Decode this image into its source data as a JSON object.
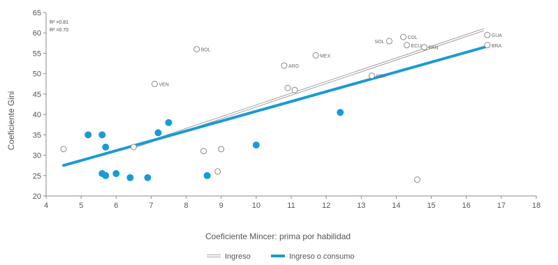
{
  "chart_data": {
    "type": "scatter",
    "xlabel": "Coeficiente Mincer: prima por habilidad",
    "ylabel": "Coeficiente Gini",
    "xlim": [
      4,
      18
    ],
    "ylim": [
      20,
      65
    ],
    "x_ticks": [
      "4",
      "5",
      "6",
      "7",
      "8",
      "9",
      "10",
      "11",
      "12",
      "13",
      "14",
      "15",
      "16",
      "17",
      "18"
    ],
    "y_ticks": [
      "20",
      "25",
      "30",
      "35",
      "40",
      "45",
      "50",
      "55",
      "60",
      "65"
    ],
    "grid": false,
    "legend_position": "bottom",
    "annotation_lines": [
      "R² =0.81",
      "R² =0.70"
    ],
    "series": [
      {
        "name": "Ingreso",
        "kind": "points",
        "marker": "open-circle",
        "color": "#888888",
        "points": [
          {
            "x": 4.5,
            "y": 31.5,
            "label": ""
          },
          {
            "x": 6.5,
            "y": 32.0,
            "label": ""
          },
          {
            "x": 7.1,
            "y": 47.5,
            "label": "VEN"
          },
          {
            "x": 8.3,
            "y": 56.0,
            "label": "BOL"
          },
          {
            "x": 8.5,
            "y": 31.0,
            "label": ""
          },
          {
            "x": 8.9,
            "y": 26.0,
            "label": ""
          },
          {
            "x": 9.0,
            "y": 31.5,
            "label": ""
          },
          {
            "x": 10.8,
            "y": 52.0,
            "label": "ARG"
          },
          {
            "x": 10.9,
            "y": 46.5,
            "label": ""
          },
          {
            "x": 11.1,
            "y": 46.0,
            "label": ""
          },
          {
            "x": 11.7,
            "y": 54.5,
            "label": "MEX"
          },
          {
            "x": 13.3,
            "y": 49.5,
            "label": "PER"
          },
          {
            "x": 13.8,
            "y": 58.0,
            "label": "SOL"
          },
          {
            "x": 14.2,
            "y": 59.0,
            "label": "COL"
          },
          {
            "x": 14.3,
            "y": 57.0,
            "label": "ECU"
          },
          {
            "x": 14.8,
            "y": 56.5,
            "label": "PAN"
          },
          {
            "x": 14.6,
            "y": 24.0,
            "label": ""
          },
          {
            "x": 16.6,
            "y": 59.5,
            "label": "GUA"
          },
          {
            "x": 16.6,
            "y": 57.0,
            "label": "BRA"
          }
        ]
      },
      {
        "name": "Ingreso o consumo",
        "kind": "points",
        "marker": "filled-circle",
        "color": "#1a9ad6",
        "points": [
          {
            "x": 5.2,
            "y": 35.0,
            "label": ""
          },
          {
            "x": 5.6,
            "y": 35.0,
            "label": ""
          },
          {
            "x": 5.6,
            "y": 25.5,
            "label": ""
          },
          {
            "x": 5.7,
            "y": 25.0,
            "label": ""
          },
          {
            "x": 5.7,
            "y": 32.0,
            "label": ""
          },
          {
            "x": 6.0,
            "y": 25.5,
            "label": ""
          },
          {
            "x": 6.4,
            "y": 24.5,
            "label": ""
          },
          {
            "x": 6.9,
            "y": 24.5,
            "label": ""
          },
          {
            "x": 7.2,
            "y": 35.5,
            "label": ""
          },
          {
            "x": 7.5,
            "y": 38.0,
            "label": ""
          },
          {
            "x": 8.6,
            "y": 25.0,
            "label": ""
          },
          {
            "x": 10.0,
            "y": 32.5,
            "label": ""
          },
          {
            "x": 12.4,
            "y": 40.5,
            "label": ""
          }
        ]
      },
      {
        "name": "Ingreso",
        "kind": "trendline",
        "color": "#888888",
        "style": "double-thin",
        "x": [
          6.5,
          16.5
        ],
        "y": [
          32.0,
          60.8
        ]
      },
      {
        "name": "Ingreso o consumo",
        "kind": "trendline",
        "color": "#1a9ad6",
        "style": "thick",
        "x": [
          4.5,
          16.6
        ],
        "y": [
          27.5,
          56.7
        ]
      }
    ]
  }
}
